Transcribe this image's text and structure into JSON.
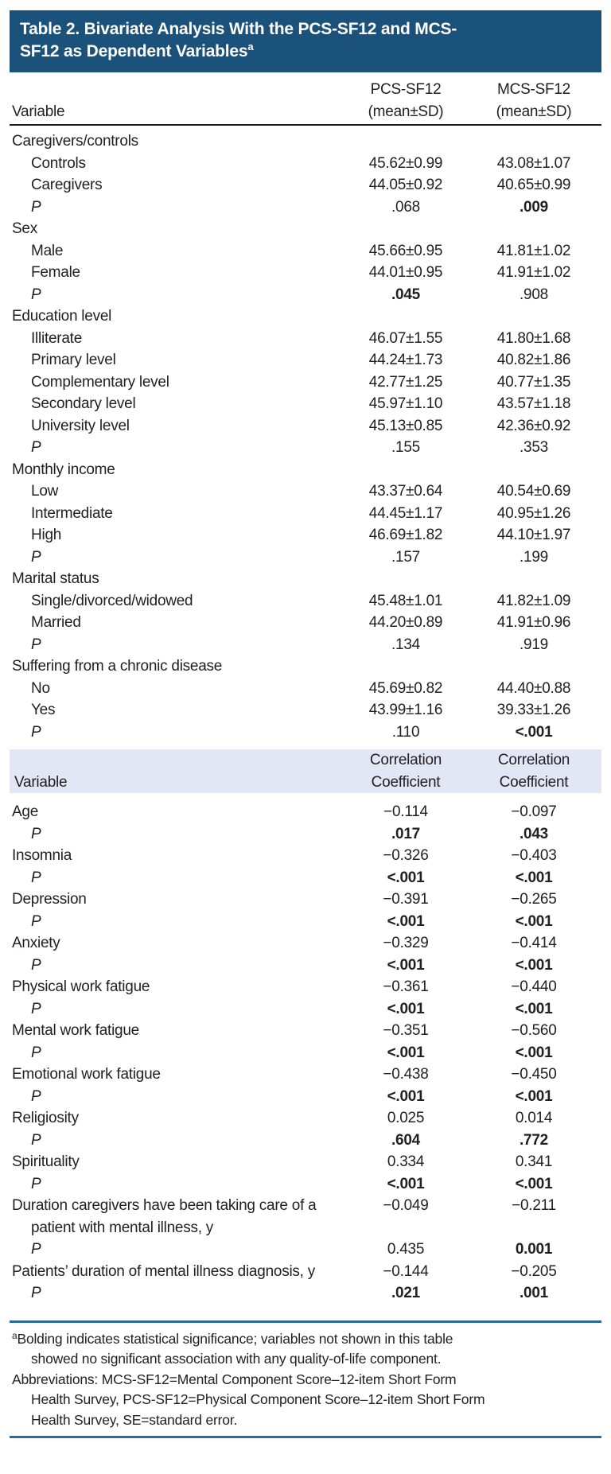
{
  "title": {
    "line1": "Table 2. Bivariate Analysis With the PCS-SF12 and MCS-",
    "line2": "SF12 as Dependent Variables",
    "sup": "a"
  },
  "header": {
    "variable": "Variable",
    "pcs": [
      "PCS-SF12",
      "(mean±SD)"
    ],
    "mcs": [
      "MCS-SF12",
      "(mean±SD)"
    ]
  },
  "header2": {
    "variable": "Variable",
    "pcs": [
      "Correlation",
      "Coefficient"
    ],
    "mcs": [
      "Correlation",
      "Coefficient"
    ]
  },
  "colors": {
    "title_bar": "#1B527B",
    "band": "#E3E7F5",
    "rule_blue": "#2A6B9E"
  },
  "body1": [
    {
      "l": "Caregivers/controls",
      "i": 0,
      "v1": "",
      "v2": ""
    },
    {
      "l": "Controls",
      "i": 1,
      "v1": "45.62±0.99",
      "v2": "43.08±1.07"
    },
    {
      "l": "Caregivers",
      "i": 1,
      "v1": "44.05±0.92",
      "v2": "40.65±0.99"
    },
    {
      "l": "P",
      "i": 1,
      "it": true,
      "v1": ".068",
      "v2": ".009",
      "b2": true
    },
    {
      "l": "Sex",
      "i": 0,
      "v1": "",
      "v2": ""
    },
    {
      "l": "Male",
      "i": 1,
      "v1": "45.66±0.95",
      "v2": "41.81±1.02"
    },
    {
      "l": "Female",
      "i": 1,
      "v1": "44.01±0.95",
      "v2": "41.91±1.02"
    },
    {
      "l": "P",
      "i": 1,
      "it": true,
      "v1": ".045",
      "b1": true,
      "v2": ".908"
    },
    {
      "l": "Education level",
      "i": 0,
      "v1": "",
      "v2": ""
    },
    {
      "l": "Illiterate",
      "i": 1,
      "v1": "46.07±1.55",
      "v2": "41.80±1.68"
    },
    {
      "l": "Primary level",
      "i": 1,
      "v1": "44.24±1.73",
      "v2": "40.82±1.86"
    },
    {
      "l": "Complementary level",
      "i": 1,
      "v1": "42.77±1.25",
      "v2": "40.77±1.35"
    },
    {
      "l": "Secondary level",
      "i": 1,
      "v1": "45.97±1.10",
      "v2": "43.57±1.18"
    },
    {
      "l": "University level",
      "i": 1,
      "v1": "45.13±0.85",
      "v2": "42.36±0.92"
    },
    {
      "l": "P",
      "i": 1,
      "it": true,
      "v1": ".155",
      "v2": ".353"
    },
    {
      "l": "Monthly income",
      "i": 0,
      "v1": "",
      "v2": ""
    },
    {
      "l": "Low",
      "i": 1,
      "v1": "43.37±0.64",
      "v2": "40.54±0.69"
    },
    {
      "l": "Intermediate",
      "i": 1,
      "v1": "44.45±1.17",
      "v2": "40.95±1.26"
    },
    {
      "l": "High",
      "i": 1,
      "v1": "46.69±1.82",
      "v2": "44.10±1.97"
    },
    {
      "l": "P",
      "i": 1,
      "it": true,
      "v1": ".157",
      "v2": ".199"
    },
    {
      "l": "Marital status",
      "i": 0,
      "v1": "",
      "v2": ""
    },
    {
      "l": "Single/divorced/widowed",
      "i": 1,
      "v1": "45.48±1.01",
      "v2": "41.82±1.09"
    },
    {
      "l": "Married",
      "i": 1,
      "v1": "44.20±0.89",
      "v2": "41.91±0.96"
    },
    {
      "l": "P",
      "i": 1,
      "it": true,
      "v1": ".134",
      "v2": ".919"
    },
    {
      "l": "Suffering from a chronic disease",
      "i": 0,
      "v1": "",
      "v2": ""
    },
    {
      "l": "No",
      "i": 1,
      "v1": "45.69±0.82",
      "v2": "44.40±0.88"
    },
    {
      "l": "Yes",
      "i": 1,
      "v1": "43.99±1.16",
      "v2": "39.33±1.26"
    },
    {
      "l": "P",
      "i": 1,
      "it": true,
      "v1": ".110",
      "v2": "<.001",
      "b2": true
    }
  ],
  "body2": [
    {
      "l": "Age",
      "i": 0,
      "v1": "−0.114",
      "v2": "−0.097"
    },
    {
      "l": "P",
      "i": 1,
      "it": true,
      "v1": ".017",
      "b1": true,
      "v2": ".043",
      "b2": true
    },
    {
      "l": "Insomnia",
      "i": 0,
      "v1": "−0.326",
      "v2": "−0.403"
    },
    {
      "l": "P",
      "i": 1,
      "it": true,
      "v1": "<.001",
      "b1": true,
      "v2": "<.001",
      "b2": true
    },
    {
      "l": "Depression",
      "i": 0,
      "v1": "−0.391",
      "v2": "−0.265"
    },
    {
      "l": "P",
      "i": 1,
      "it": true,
      "v1": "<.001",
      "b1": true,
      "v2": "<.001",
      "b2": true
    },
    {
      "l": "Anxiety",
      "i": 0,
      "v1": "−0.329",
      "v2": "−0.414"
    },
    {
      "l": "P",
      "i": 1,
      "it": true,
      "v1": "<.001",
      "b1": true,
      "v2": "<.001",
      "b2": true
    },
    {
      "l": "Physical work fatigue",
      "i": 0,
      "v1": "−0.361",
      "v2": "−0.440"
    },
    {
      "l": "P",
      "i": 1,
      "it": true,
      "v1": "<.001",
      "b1": true,
      "v2": "<.001",
      "b2": true
    },
    {
      "l": "Mental work fatigue",
      "i": 0,
      "v1": "−0.351",
      "v2": "−0.560"
    },
    {
      "l": "P",
      "i": 1,
      "it": true,
      "v1": "<.001",
      "b1": true,
      "v2": "<.001",
      "b2": true
    },
    {
      "l": "Emotional work fatigue",
      "i": 0,
      "v1": "−0.438",
      "v2": "−0.450"
    },
    {
      "l": "P",
      "i": 1,
      "it": true,
      "v1": "<.001",
      "b1": true,
      "v2": "<.001",
      "b2": true
    },
    {
      "l": "Religiosity",
      "i": 0,
      "v1": "0.025",
      "v2": "0.014"
    },
    {
      "l": "P",
      "i": 1,
      "it": true,
      "v1": ".604",
      "b1": true,
      "v2": ".772",
      "b2": true
    },
    {
      "l": "Spirituality",
      "i": 0,
      "v1": "0.334",
      "v2": "0.341"
    },
    {
      "l": "P",
      "i": 1,
      "it": true,
      "v1": "<.001",
      "b1": true,
      "v2": "<.001",
      "b2": true
    },
    {
      "l": "Duration caregivers have been taking care of a patient with mental illness, y",
      "i": 0,
      "v1": "−0.049",
      "v2": "−0.211"
    },
    {
      "l": "P",
      "i": 1,
      "it": true,
      "v1": "0.435",
      "v2": "0.001",
      "b2": true
    },
    {
      "l": "Patients’ duration of mental illness diagnosis, y",
      "i": 0,
      "v1": "−0.144",
      "v2": "−0.205"
    },
    {
      "l": "P",
      "i": 1,
      "it": true,
      "v1": ".021",
      "b1": true,
      "v2": ".001",
      "b2": true
    }
  ],
  "footnotes": [
    {
      "sup": "a",
      "lines": [
        "Bolding indicates statistical significance; variables not shown in this table",
        "showed no significant association with any quality-of-life component."
      ]
    },
    {
      "sup": "",
      "lines": [
        "Abbreviations: MCS-SF12=Mental Component Score–12-item Short Form",
        "Health Survey, PCS-SF12=Physical Component Score–12-item Short Form",
        "Health Survey, SE=standard error."
      ]
    }
  ]
}
